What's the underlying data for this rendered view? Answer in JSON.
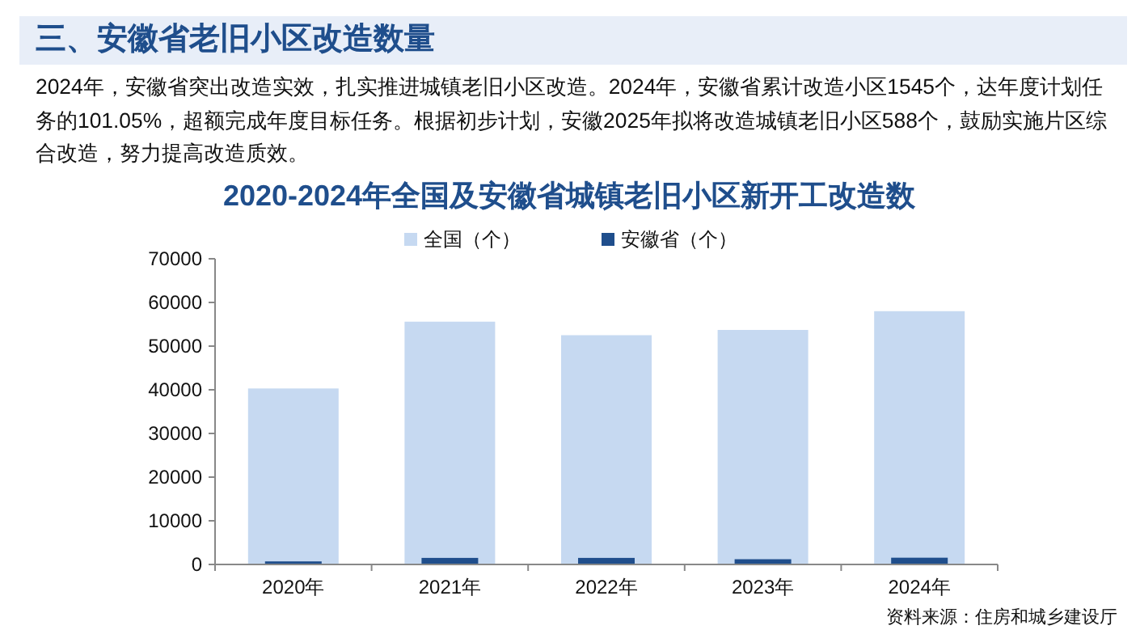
{
  "chart_data": {
    "type": "bar",
    "title": "2020-2024年全国及安徽省城镇老旧小区新开工改造数",
    "annotations": [
      "三、安徽省老旧小区改造数量",
      "2024年，安徽省突出改造实效，扎实推进城镇老旧小区改造。2024年，安徽省累计改造小区1545个，达年度计划任务的101.05%，超额完成年度目标任务。根据初步计划，安徽2025年拟将改造城镇老旧小区588个，鼓励实施片区综合改造，努力提高改造质效。",
      "资料来源：住房和城乡建设厅"
    ],
    "categories": [
      "2020年",
      "2021年",
      "2022年",
      "2023年",
      "2024年"
    ],
    "series": [
      {
        "name": "全国（个）",
        "color": "#c6d9f1",
        "values": [
          40300,
          55600,
          52500,
          53700,
          58000
        ]
      },
      {
        "name": "安徽省（个）",
        "color": "#1f4e8c",
        "values": [
          700,
          1500,
          1500,
          1200,
          1545
        ]
      }
    ],
    "ylim": [
      0,
      70000
    ],
    "yticks": [
      0,
      10000,
      20000,
      30000,
      40000,
      50000,
      60000,
      70000
    ],
    "grid": false,
    "legend": "top"
  }
}
